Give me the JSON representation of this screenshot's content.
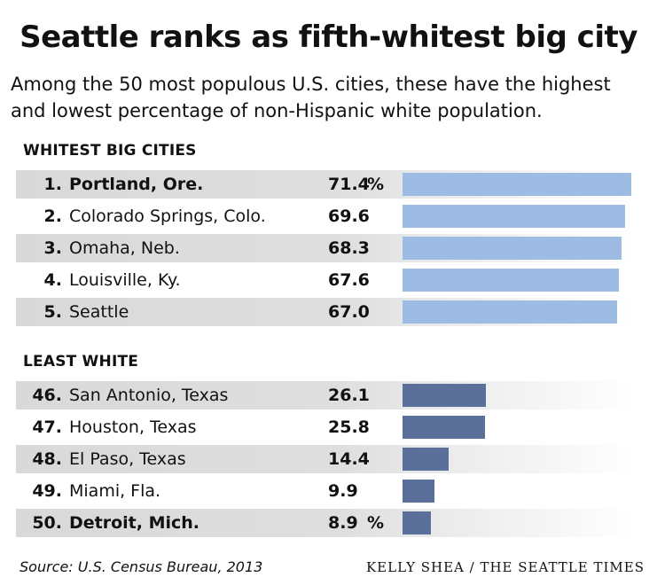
{
  "title": "Seattle ranks as fifth-whitest big city",
  "subtitle_line1": "Among the 50 most populous U.S. cities, these have the highest",
  "subtitle_line2": "and lowest percentage of non-Hispanic white population.",
  "source": "Source: U.S. Census Bureau, 2013",
  "credit": "KELLY SHEA / THE SEATTLE TIMES",
  "chart_data": {
    "type": "bar",
    "unit": "%",
    "xlim": [
      0,
      71.4
    ],
    "groups": [
      {
        "label": "WHITEST BIG CITIES",
        "color": "#9dbbe3",
        "rows": [
          {
            "rank": "1.",
            "city": "Portland, Ore.",
            "value": 71.4,
            "display": "71.4",
            "pct": "%",
            "bold": true
          },
          {
            "rank": "2.",
            "city": "Colorado Springs, Colo.",
            "value": 69.6,
            "display": "69.6",
            "pct": "",
            "bold": false
          },
          {
            "rank": "3.",
            "city": "Omaha, Neb.",
            "value": 68.3,
            "display": "68.3",
            "pct": "",
            "bold": false
          },
          {
            "rank": "4.",
            "city": "Louisville, Ky.",
            "value": 67.6,
            "display": "67.6",
            "pct": "",
            "bold": false
          },
          {
            "rank": "5.",
            "city": "Seattle",
            "value": 67.0,
            "display": "67.0",
            "pct": "",
            "bold": false
          }
        ]
      },
      {
        "label": "LEAST WHITE",
        "color": "#5b7099",
        "rows": [
          {
            "rank": "46.",
            "city": "San Antonio, Texas",
            "value": 26.1,
            "display": "26.1",
            "pct": "",
            "bold": false
          },
          {
            "rank": "47.",
            "city": "Houston, Texas",
            "value": 25.8,
            "display": "25.8",
            "pct": "",
            "bold": false
          },
          {
            "rank": "48.",
            "city": "El Paso, Texas",
            "value": 14.4,
            "display": "14.4",
            "pct": "",
            "bold": false
          },
          {
            "rank": "49.",
            "city": "Miami, Fla.",
            "value": 9.9,
            "display": "9.9",
            "pct": "",
            "bold": false
          },
          {
            "rank": "50.",
            "city": "Detroit, Mich.",
            "value": 8.9,
            "display": "8.9",
            "pct": "%",
            "bold": true
          }
        ]
      }
    ]
  }
}
